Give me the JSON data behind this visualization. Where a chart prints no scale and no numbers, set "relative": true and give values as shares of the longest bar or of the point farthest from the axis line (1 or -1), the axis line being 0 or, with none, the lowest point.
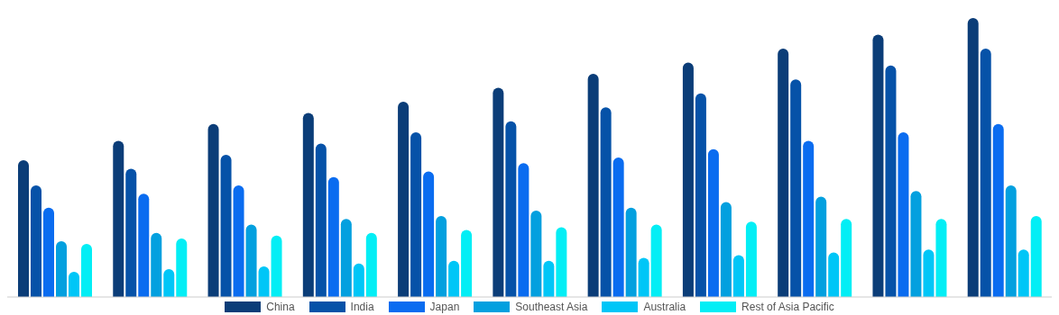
{
  "chart_data": {
    "type": "bar",
    "relative": true,
    "legend": "bottom",
    "categories": [
      null,
      null,
      null,
      null,
      null,
      null,
      null,
      null,
      null,
      null,
      null
    ],
    "series": [
      {
        "name": "China",
        "color": "#0b3d78",
        "values": [
          0.49,
          0.56,
          0.62,
          0.66,
          0.7,
          0.75,
          0.8,
          0.84,
          0.89,
          0.94,
          1
        ]
      },
      {
        "name": "India",
        "color": "#0652a8",
        "values": [
          0.4,
          0.46,
          0.51,
          0.55,
          0.59,
          0.63,
          0.68,
          0.73,
          0.78,
          0.83,
          0.89
        ]
      },
      {
        "name": "Japan",
        "color": "#0a6cf0",
        "values": [
          0.32,
          0.37,
          0.4,
          0.43,
          0.45,
          0.48,
          0.5,
          0.53,
          0.56,
          0.59,
          0.62
        ]
      },
      {
        "name": "Southeast Asia",
        "color": "#03a0df",
        "values": [
          0.2,
          0.23,
          0.26,
          0.28,
          0.29,
          0.31,
          0.32,
          0.34,
          0.36,
          0.38,
          0.4
        ]
      },
      {
        "name": "Australia",
        "color": "#00c6f7",
        "values": [
          0.09,
          0.1,
          0.11,
          0.12,
          0.13,
          0.13,
          0.14,
          0.15,
          0.16,
          0.17,
          0.17
        ]
      },
      {
        "name": "Rest of Asia Pacific",
        "color": "#03eef5",
        "values": [
          0.19,
          0.21,
          0.22,
          0.23,
          0.24,
          0.25,
          0.26,
          0.27,
          0.28,
          0.28,
          0.29
        ]
      }
    ]
  }
}
